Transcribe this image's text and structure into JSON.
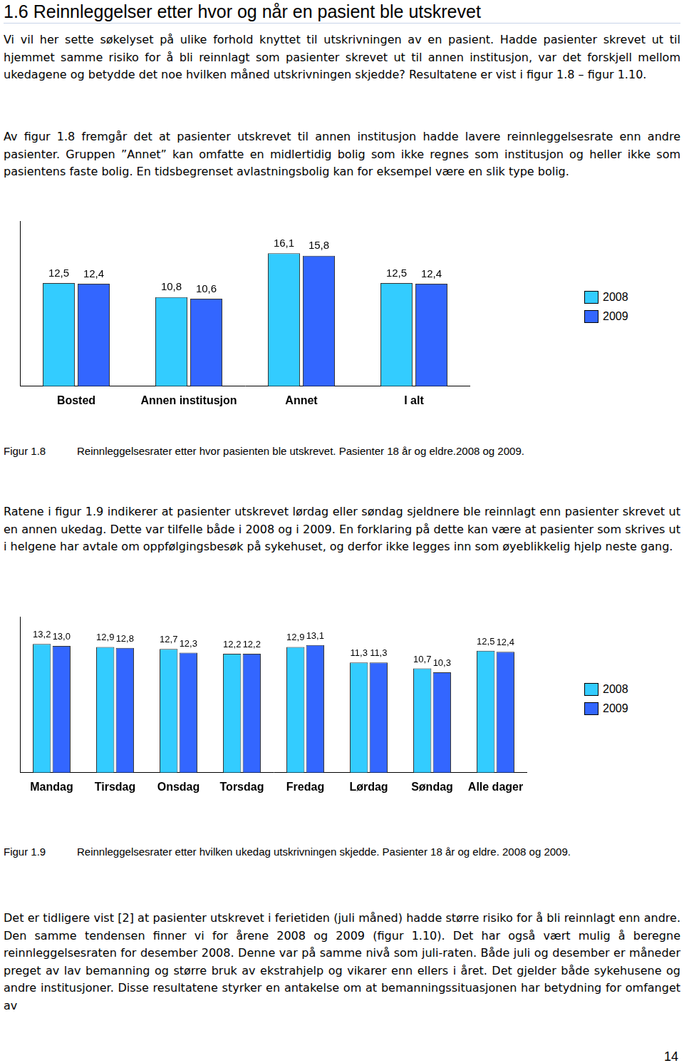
{
  "heading": "1.6 Reinnleggelser etter hvor og når en pasient ble utskrevet",
  "paragraphs": [
    "Vi vil her sette søkelyset på ulike forhold knyttet til utskrivningen av en pasient. Hadde pasienter skrevet ut til hjemmet samme risiko for å bli reinnlagt som pasienter skrevet ut til annen institusjon, var det forskjell mellom ukedagene og betydde det noe hvilken måned utskrivningen skjedde? Resultatene er vist i figur 1.8 – figur 1.10.",
    "Av figur 1.8 fremgår det at pasienter utskrevet til annen institusjon hadde lavere reinnleggelsesrate enn andre pasienter. Gruppen ”Annet” kan omfatte en midlertidig bolig som ikke regnes som institusjon og heller ikke som pasientens faste bolig. En tidsbegrenset avlastningsbolig kan for eksempel være en slik type bolig.",
    "Ratene i figur 1.9 indikerer at pasienter utskrevet lørdag eller søndag sjeldnere ble reinnlagt enn pasienter skrevet ut en annen ukedag. Dette var tilfelle både i 2008 og i 2009. En forklaring på dette kan være at pasienter som skrives ut i helgene har avtale om oppfølgingsbesøk på sykehuset, og derfor ikke legges inn som øyeblikkelig hjelp neste gang.",
    "Det er tidligere vist [2] at pasienter utskrevet i ferietiden (juli måned) hadde større risiko for å bli reinnlagt enn andre. Den samme tendensen finner vi for årene 2008 og 2009 (figur 1.10). Det har også vært mulig å beregne reinnleggelsesraten for desember 2008. Denne var på samme nivå som juli-raten. Både juli og desember er måneder preget av lav bemanning og større bruk av ekstrahjelp og vikarer enn ellers i året. Det gjelder både sykehusene og andre institusjoner. Disse resultatene styrker en antakelse om at bemanningssituasjonen har betydning for omfanget av"
  ],
  "figures": [
    {
      "label": "Figur 1.8",
      "caption": "Reinnleggelsesrater etter hvor pasienten ble utskrevet. Pasienter 18 år og eldre.2008 og 2009."
    },
    {
      "label": "Figur 1.9",
      "caption": "Reinnleggelsesrater etter hvilken ukedag utskrivningen skjedde. Pasienter 18 år og eldre. 2008 og 2009."
    }
  ],
  "page_number": "14",
  "chart_data": [
    {
      "type": "bar",
      "categories": [
        "Bosted",
        "Annen institusjon",
        "Annet",
        "I alt"
      ],
      "series": [
        {
          "name": "2008",
          "color": "#33ccff",
          "values": [
            12.5,
            10.8,
            16.1,
            12.5
          ],
          "value_labels": [
            "12,5",
            "10,8",
            "16,1",
            "12,5"
          ]
        },
        {
          "name": "2009",
          "color": "#3366ff",
          "values": [
            12.4,
            10.6,
            15.8,
            12.4
          ],
          "value_labels": [
            "12,4",
            "10,6",
            "15,8",
            "12,4"
          ]
        }
      ],
      "ylim": [
        0,
        20
      ],
      "grid": false,
      "tick_labels": "x",
      "data_labels": true,
      "legend": "right"
    },
    {
      "type": "bar",
      "categories": [
        "Mandag",
        "Tirsdag",
        "Onsdag",
        "Torsdag",
        "Fredag",
        "Lørdag",
        "Søndag",
        "Alle dager"
      ],
      "series": [
        {
          "name": "2008",
          "color": "#33ccff",
          "values": [
            13.2,
            12.9,
            12.7,
            12.2,
            12.9,
            11.3,
            10.7,
            12.5
          ],
          "value_labels": [
            "13,2",
            "12,9",
            "12,7",
            "12,2",
            "12,9",
            "11,3",
            "10,7",
            "12,5"
          ]
        },
        {
          "name": "2009",
          "color": "#3366ff",
          "values": [
            13.0,
            12.8,
            12.3,
            12.2,
            13.1,
            11.3,
            10.3,
            12.4
          ],
          "value_labels": [
            "13,0",
            "12,8",
            "12,3",
            "12,2",
            "13,1",
            "11,3",
            "10,3",
            "12,4"
          ]
        }
      ],
      "ylim": [
        0,
        16
      ],
      "grid": false,
      "tick_labels": "x",
      "data_labels": true,
      "legend": "right"
    }
  ]
}
